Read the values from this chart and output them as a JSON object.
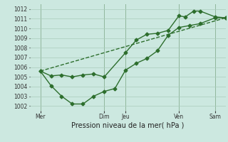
{
  "background_color": "#cce8e0",
  "grid_color": "#aaccbb",
  "line_color": "#2d6e2d",
  "title": "Pression niveau de la mer( hPa )",
  "ylabel_values": [
    1002,
    1003,
    1004,
    1005,
    1006,
    1007,
    1008,
    1009,
    1010,
    1011,
    1012
  ],
  "ylim": [
    1001.5,
    1012.5
  ],
  "xlim": [
    0.0,
    9.2
  ],
  "xtick_positions": [
    0.5,
    3.5,
    4.5,
    7.0,
    8.7
  ],
  "xtick_labels": [
    "Mer",
    "Dim",
    "Jeu",
    "Ven",
    "Sam"
  ],
  "vlines": [
    0.5,
    3.5,
    4.5,
    7.0,
    8.7
  ],
  "series1_x": [
    0.5,
    1.0,
    1.5,
    2.0,
    2.5,
    3.0,
    3.5,
    4.5,
    5.0,
    5.5,
    6.0,
    6.5,
    7.0,
    7.3,
    7.7,
    8.0,
    8.7,
    9.2
  ],
  "series1_y": [
    1005.6,
    1005.1,
    1005.2,
    1005.0,
    1005.2,
    1005.3,
    1005.0,
    1007.5,
    1008.8,
    1009.4,
    1009.5,
    1009.8,
    1011.3,
    1011.2,
    1011.8,
    1011.8,
    1011.2,
    1011.1
  ],
  "series2_x": [
    0.5,
    1.0,
    1.5,
    2.0,
    2.5,
    3.0,
    3.5,
    4.0,
    4.5,
    5.0,
    5.5,
    6.0,
    6.5,
    7.0,
    7.5,
    8.0,
    8.7,
    9.2
  ],
  "series2_y": [
    1005.6,
    1004.1,
    1003.0,
    1002.2,
    1002.2,
    1003.0,
    1003.5,
    1003.8,
    1005.7,
    1006.4,
    1006.9,
    1007.7,
    1009.3,
    1010.1,
    1010.3,
    1010.5,
    1011.1,
    1011.1
  ],
  "series3_x": [
    0.5,
    9.2
  ],
  "series3_y": [
    1005.6,
    1011.1
  ],
  "markersize": 2.5,
  "linewidth": 1.0,
  "title_fontsize": 7,
  "tick_fontsize": 5.5
}
